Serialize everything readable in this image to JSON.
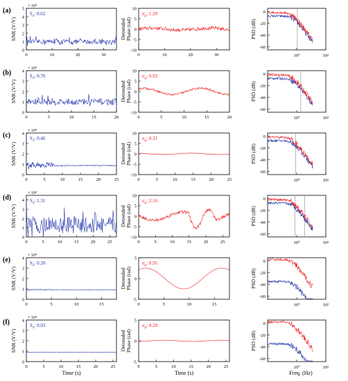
{
  "figure": {
    "xlabel_time": "Time (s)",
    "xlabel_freq": "Freq. (Hz)",
    "ylabel_snr": "SNR (V/V)",
    "ylabel_phase_line1": "Detrended",
    "ylabel_phase_line2": "Phase (rad)",
    "ylabel_psd": "PSD (dB)",
    "snr_exponent": "× 10⁴",
    "s4_prefix": "S",
    "s4_sub": "4",
    "sigma_symbol": "σ",
    "sigma_sub": "φ",
    "colors": {
      "snr": "#2233aa",
      "phase": "#ee2222",
      "psd_red": "#ee2222",
      "psd_blue": "#2233aa",
      "vline": "#999999",
      "axis": "#000000"
    }
  },
  "chart_data": [
    {
      "panel": "a",
      "label": "(a)",
      "snr": {
        "type": "line",
        "xlim": [
          0,
          35
        ],
        "xticks": [
          0,
          10,
          20,
          30
        ],
        "ylim": [
          0,
          5
        ],
        "yticks": [
          0,
          1,
          2,
          3,
          4,
          5
        ],
        "s4": "0.62",
        "mean": 0.9,
        "amp": 0.55
      },
      "phase": {
        "type": "line",
        "xlim": [
          0,
          35
        ],
        "xticks": [
          0,
          10,
          20,
          30
        ],
        "ylim": [
          -10,
          10
        ],
        "yticks": [
          -10,
          -5,
          0,
          5,
          10
        ],
        "sigma": "1.20",
        "amp": 0.9,
        "wave": 0.5
      },
      "psd": {
        "type": "line",
        "xscale": "log",
        "xlim": [
          0.01,
          100
        ],
        "ylim": [
          -65,
          5
        ],
        "yticks": [
          -60,
          -40,
          -20,
          0
        ],
        "xtick_labels": [
          "10⁰",
          "10²"
        ],
        "vlines": [
          1.1
        ]
      }
    },
    {
      "panel": "b",
      "label": "(b)",
      "snr": {
        "type": "line",
        "xlim": [
          0,
          20
        ],
        "xticks": [
          0,
          5,
          10,
          15,
          20
        ],
        "ylim": [
          0,
          4
        ],
        "yticks": [
          0,
          1,
          2,
          3,
          4
        ],
        "s4": "0.70",
        "mean": 0.9,
        "amp": 0.65
      },
      "phase": {
        "type": "line",
        "xlim": [
          0,
          20
        ],
        "xticks": [
          0,
          5,
          10,
          15,
          20
        ],
        "ylim": [
          -10,
          10
        ],
        "yticks": [
          -10,
          -5,
          0,
          5,
          10
        ],
        "sigma": "0.93",
        "amp": 0.5,
        "wave": 1.5
      },
      "psd": {
        "type": "line",
        "xscale": "log",
        "xlim": [
          0.01,
          100
        ],
        "ylim": [
          -65,
          5
        ],
        "yticks": [
          -60,
          -40,
          -20,
          0
        ],
        "xtick_labels": [
          "10⁰",
          "10²"
        ],
        "vlines": [
          1.9
        ]
      }
    },
    {
      "panel": "c",
      "label": "(c)",
      "snr": {
        "type": "line",
        "xlim": [
          0,
          25
        ],
        "xticks": [
          0,
          5,
          10,
          15,
          20,
          25
        ],
        "ylim": [
          0,
          4
        ],
        "yticks": [
          0,
          1,
          2,
          3,
          4
        ],
        "s4": "0.46",
        "mean": 0.85,
        "amp": 0.25
      },
      "phase": {
        "type": "line",
        "xlim": [
          0,
          25
        ],
        "xticks": [
          0,
          5,
          10,
          15,
          20,
          25
        ],
        "ylim": [
          -10,
          10
        ],
        "yticks": [
          -10,
          -5,
          0,
          5,
          10
        ],
        "sigma": "0.31",
        "amp": 0.15,
        "wave": 0.3
      },
      "psd": {
        "type": "line",
        "xscale": "log",
        "xlim": [
          0.01,
          100
        ],
        "ylim": [
          -65,
          5
        ],
        "yticks": [
          -60,
          -40,
          -20,
          0
        ],
        "xtick_labels": [
          "10⁰",
          "10²"
        ],
        "vlines": [
          0.85
        ]
      }
    },
    {
      "panel": "d",
      "label": "(d)",
      "snr": {
        "type": "line",
        "xlim": [
          0,
          27
        ],
        "xticks": [
          0,
          5,
          10,
          15,
          20,
          25
        ],
        "ylim": [
          0,
          4.5
        ],
        "yticks": [
          0,
          1,
          2,
          3,
          4
        ],
        "s4": "1.31",
        "mean": 1.0,
        "amp": 1.8
      },
      "phase": {
        "type": "line",
        "xlim": [
          0,
          27
        ],
        "xticks": [
          0,
          5,
          10,
          15,
          20,
          25
        ],
        "ylim": [
          -10,
          10
        ],
        "yticks": [
          -10,
          -5,
          0,
          5,
          10
        ],
        "sigma": "2.16",
        "amp": 0.8,
        "wave": 2.0
      },
      "psd": {
        "type": "line",
        "xscale": "log",
        "xlim": [
          0.01,
          100
        ],
        "ylim": [
          -65,
          5
        ],
        "yticks": [
          -60,
          -40,
          -20,
          0
        ],
        "xtick_labels": [
          "10⁰",
          "10²"
        ],
        "vlines": [
          0.75,
          3.5
        ]
      }
    },
    {
      "panel": "e",
      "label": "(e)",
      "snr": {
        "type": "line",
        "xlim": [
          0,
          18
        ],
        "xticks": [
          0,
          5,
          10,
          15
        ],
        "ylim": [
          0,
          4
        ],
        "yticks": [
          0,
          1,
          2,
          3,
          4
        ],
        "s4": "0.20",
        "mean": 0.9,
        "amp": 0.05
      },
      "phase": {
        "type": "line",
        "xlim": [
          0,
          18
        ],
        "xticks": [
          0,
          5,
          10,
          15
        ],
        "ylim": [
          -5,
          5
        ],
        "yticks": [
          -5,
          0,
          5
        ],
        "sigma": "0.95",
        "amp": 0.02,
        "wave": 2.5
      },
      "psd": {
        "type": "line",
        "xscale": "log",
        "xlim": [
          0.01,
          100
        ],
        "ylim": [
          -65,
          5
        ],
        "yticks": [
          -60,
          -40,
          -20,
          0
        ],
        "xtick_labels": [
          "10⁰",
          "10²"
        ],
        "vlines": []
      }
    },
    {
      "panel": "f",
      "label": "(f)",
      "snr": {
        "type": "line",
        "xlim": [
          0,
          26
        ],
        "xticks": [
          0,
          5,
          10,
          15,
          20,
          25
        ],
        "ylim": [
          0,
          4
        ],
        "yticks": [
          0,
          1,
          2,
          3,
          4
        ],
        "s4": "0.03",
        "mean": 0.9,
        "amp": 0.02
      },
      "phase": {
        "type": "line",
        "xlim": [
          0,
          26
        ],
        "xticks": [
          0,
          5,
          10,
          15,
          20,
          25
        ],
        "ylim": [
          -5,
          5
        ],
        "yticks": [
          -5,
          0,
          5
        ],
        "sigma": "0.20",
        "amp": 0.02,
        "wave": 0.15
      },
      "psd": {
        "type": "line",
        "xscale": "log",
        "xlim": [
          0.01,
          100
        ],
        "ylim": [
          -65,
          5
        ],
        "yticks": [
          -60,
          -40,
          -20,
          0
        ],
        "xtick_labels": [
          "10⁰",
          "10²"
        ],
        "vlines": []
      }
    }
  ]
}
